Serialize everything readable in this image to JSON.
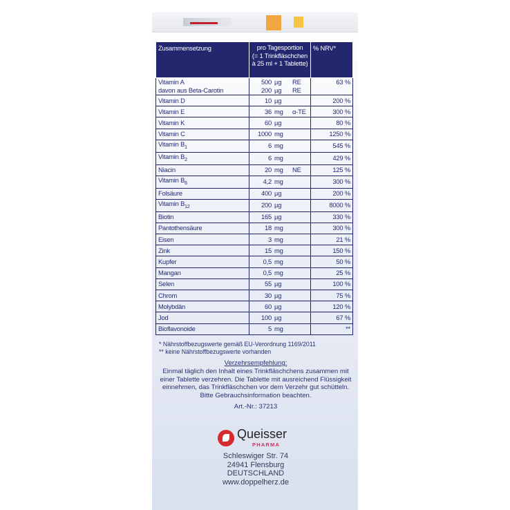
{
  "table": {
    "headers": [
      "Zusammensetzung",
      "pro Tagesportion",
      "(= 1 Trinkfläschchen",
      "à 25 ml + 1 Tablette)",
      "% NRV*"
    ],
    "rows": [
      {
        "name": "Vitamin A",
        "sub": "",
        "name2": "davon aus Beta-Carotin",
        "amount": "500",
        "unit": "µg",
        "extra": "RE",
        "amount2": "200",
        "unit2": "µg",
        "extra2": "RE",
        "nrv": "63 %"
      },
      {
        "name": "Vitamin D",
        "sub": "",
        "amount": "10",
        "unit": "µg",
        "extra": "",
        "nrv": "200 %"
      },
      {
        "name": "Vitamin E",
        "sub": "",
        "amount": "36",
        "unit": "mg",
        "extra": "α-TE",
        "nrv": "300 %"
      },
      {
        "name": "Vitamin K",
        "sub": "",
        "amount": "60",
        "unit": "µg",
        "extra": "",
        "nrv": "80 %"
      },
      {
        "name": "Vitamin C",
        "sub": "",
        "amount": "1000",
        "unit": "mg",
        "extra": "",
        "nrv": "1250 %"
      },
      {
        "name": "Vitamin B",
        "sub": "1",
        "amount": "6",
        "unit": "mg",
        "extra": "",
        "nrv": "545 %"
      },
      {
        "name": "Vitamin B",
        "sub": "2",
        "amount": "6",
        "unit": "mg",
        "extra": "",
        "nrv": "429 %"
      },
      {
        "name": "Niacin",
        "sub": "",
        "amount": "20",
        "unit": "mg",
        "extra": "NE",
        "nrv": "125 %"
      },
      {
        "name": "Vitamin B",
        "sub": "6",
        "amount": "4,2",
        "unit": "mg",
        "extra": "",
        "nrv": "300 %"
      },
      {
        "name": "Folsäure",
        "sub": "",
        "amount": "400",
        "unit": "µg",
        "extra": "",
        "nrv": "200 %"
      },
      {
        "name": "Vitamin B",
        "sub": "12",
        "amount": "200",
        "unit": "µg",
        "extra": "",
        "nrv": "8000 %"
      },
      {
        "name": "Biotin",
        "sub": "",
        "amount": "165",
        "unit": "µg",
        "extra": "",
        "nrv": "330 %"
      },
      {
        "name": "Pantothensäure",
        "sub": "",
        "amount": "18",
        "unit": "mg",
        "extra": "",
        "nrv": "300 %"
      },
      {
        "name": "Eisen",
        "sub": "",
        "amount": "3",
        "unit": "mg",
        "extra": "",
        "nrv": "21 %"
      },
      {
        "name": "Zink",
        "sub": "",
        "amount": "15",
        "unit": "mg",
        "extra": "",
        "nrv": "150 %"
      },
      {
        "name": "Kupfer",
        "sub": "",
        "amount": "0,5",
        "unit": "mg",
        "extra": "",
        "nrv": "50 %"
      },
      {
        "name": "Mangan",
        "sub": "",
        "amount": "0,5",
        "unit": "mg",
        "extra": "",
        "nrv": "25 %"
      },
      {
        "name": "Selen",
        "sub": "",
        "amount": "55",
        "unit": "µg",
        "extra": "",
        "nrv": "100 %"
      },
      {
        "name": "Chrom",
        "sub": "",
        "amount": "30",
        "unit": "µg",
        "extra": "",
        "nrv": "75 %"
      },
      {
        "name": "Molybdän",
        "sub": "",
        "amount": "60",
        "unit": "µg",
        "extra": "",
        "nrv": "120 %"
      },
      {
        "name": "Jod",
        "sub": "",
        "amount": "100",
        "unit": "µg",
        "extra": "",
        "nrv": "67 %"
      },
      {
        "name": "Bioflavonoide",
        "sub": "",
        "amount": "5",
        "unit": "mg",
        "extra": "",
        "nrv": "**"
      }
    ]
  },
  "footnotes": [
    "*  Nährstoffbezugswerte gemäß EU-Verordnung 1169/2011",
    "** keine Nährstoffbezugswerte vorhanden"
  ],
  "recommendation": {
    "heading": "Verzehrsempfehlung:",
    "text": "Einmal täglich den Inhalt eines Trinkfläschchens zusammen mit einer Tablette verzehren. Die Tablette mit ausreichend Flüssigkeit einnehmen, das Trinkfläschchen vor dem Verzehr gut schütteln. Bitte Gebrauchsinformation beachten.",
    "article": "Art.-Nr.: 37213"
  },
  "brand": {
    "name": "Queisser",
    "sub": "PHARMA",
    "color": "#d52b2f"
  },
  "address": [
    "Schleswiger Str. 74",
    "24941 Flensburg",
    "DEUTSCHLAND",
    "www.doppelherz.de"
  ],
  "colors": {
    "header": "#23286e",
    "text": "#232a72"
  }
}
